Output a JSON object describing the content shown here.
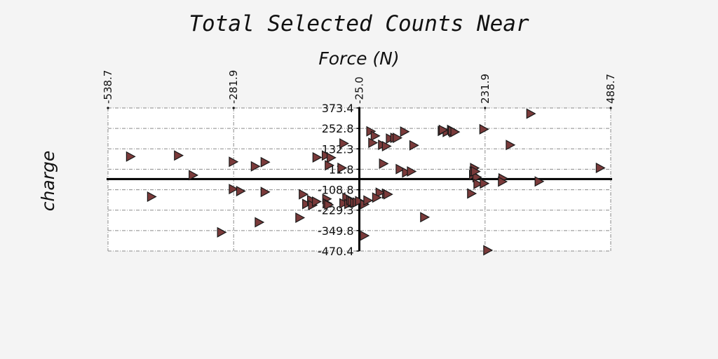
{
  "chart_data": {
    "type": "scatter",
    "title": "Total Selected Counts Near",
    "xlabel": "Force (N)",
    "ylabel": "charge",
    "xlim": [
      -538.7,
      488.7
    ],
    "ylim": [
      -470.4,
      373.4
    ],
    "x_ticks": [
      "-538.7",
      "-281.9",
      "-25.0",
      "231.9",
      "488.7"
    ],
    "y_ticks": [
      "373.4",
      "252.8",
      "132.3",
      "11.8",
      "-108.8",
      "-229.3",
      "-349.8",
      "-470.4"
    ],
    "x_tick_values": [
      -538.7,
      -281.9,
      -25.0,
      231.9,
      488.7
    ],
    "y_tick_values": [
      373.4,
      252.8,
      132.3,
      11.8,
      -108.8,
      -229.3,
      -349.8,
      -470.4
    ],
    "zero_line_y": -46.0,
    "grid": true,
    "marker": "triangle-right",
    "marker_color": "#7a3a3a",
    "points": [
      [
        -493.0,
        87.0
      ],
      [
        -395.0,
        93.0
      ],
      [
        -365.0,
        -23.0
      ],
      [
        -450.0,
        -150.0
      ],
      [
        -283.0,
        56.0
      ],
      [
        -283.0,
        -105.0
      ],
      [
        -268.0,
        -117.0
      ],
      [
        -238.0,
        29.0
      ],
      [
        -218.0,
        54.0
      ],
      [
        -230.0,
        -301.0
      ],
      [
        -218.0,
        -122.0
      ],
      [
        -307.0,
        -360.0
      ],
      [
        -147.0,
        -274.0
      ],
      [
        -140.0,
        -136.0
      ],
      [
        -133.0,
        -193.0
      ],
      [
        -123.0,
        -170.0
      ],
      [
        -121.0,
        -200.0
      ],
      [
        -113.0,
        -179.0
      ],
      [
        -92.0,
        -163.0
      ],
      [
        -91.0,
        -189.0
      ],
      [
        -88.0,
        -198.0
      ],
      [
        -112.0,
        82.0
      ],
      [
        -93.0,
        93.0
      ],
      [
        -83.0,
        80.0
      ],
      [
        -87.0,
        35.0
      ],
      [
        -61.0,
        20.0
      ],
      [
        -57.0,
        164.0
      ],
      [
        -51.0,
        -156.0
      ],
      [
        -57.0,
        -189.0
      ],
      [
        -47.0,
        -193.0
      ],
      [
        -43.0,
        -170.0
      ],
      [
        -40.0,
        -178.0
      ],
      [
        -35.0,
        -186.0
      ],
      [
        -30.0,
        -184.0
      ],
      [
        -25.0,
        -176.0
      ],
      [
        -15.0,
        -195.0
      ],
      [
        -8.0,
        -172.0
      ],
      [
        -15.0,
        -380.0
      ],
      [
        -2.0,
        236.0
      ],
      [
        7.0,
        209.0
      ],
      [
        2.0,
        168.0
      ],
      [
        22.0,
        156.0
      ],
      [
        30.0,
        148.0
      ],
      [
        38.0,
        193.0
      ],
      [
        47.0,
        197.0
      ],
      [
        52.0,
        197.0
      ],
      [
        67.0,
        234.0
      ],
      [
        30.0,
        -132.0
      ],
      [
        17.0,
        -126.0
      ],
      [
        10.0,
        -155.0
      ],
      [
        33.0,
        -136.0
      ],
      [
        24.0,
        45.0
      ],
      [
        58.0,
        13.0
      ],
      [
        71.0,
        -7.0
      ],
      [
        81.0,
        -1.0
      ],
      [
        86.0,
        153.0
      ],
      [
        144.0,
        238.0
      ],
      [
        154.0,
        232.0
      ],
      [
        167.0,
        230.0
      ],
      [
        146.0,
        244.0
      ],
      [
        163.0,
        244.0
      ],
      [
        165.0,
        238.0
      ],
      [
        170.0,
        232.0
      ],
      [
        229.0,
        248.0
      ],
      [
        325.0,
        340.0
      ],
      [
        283.0,
        155.0
      ],
      [
        467.0,
        20.0
      ],
      [
        210.0,
        19.0
      ],
      [
        208.0,
        -22.0
      ],
      [
        215.0,
        -35.0
      ],
      [
        217.0,
        -75.0
      ],
      [
        230.0,
        -72.0
      ],
      [
        204.0,
        -131.0
      ],
      [
        108.0,
        -271.0
      ],
      [
        237.0,
        -466.0
      ],
      [
        268.0,
        -42.0
      ],
      [
        267.0,
        -61.0
      ],
      [
        342.0,
        -60.0
      ],
      [
        209.0,
        -2.0
      ],
      [
        212.0,
        -1.0
      ]
    ]
  }
}
